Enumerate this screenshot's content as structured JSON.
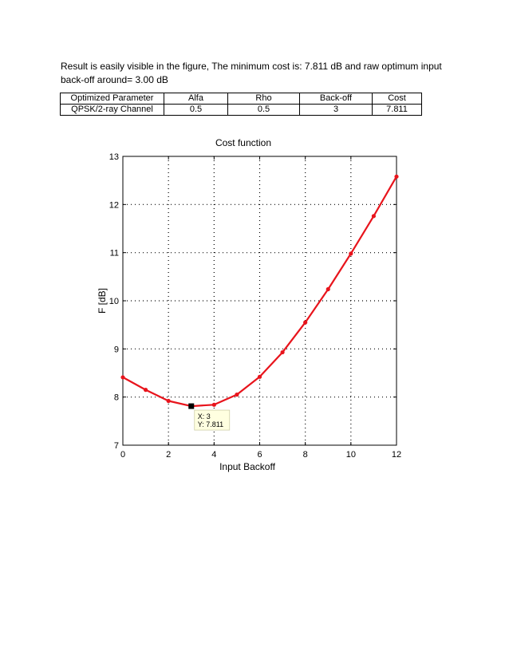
{
  "paragraph": {
    "line1": "Result is easily visible in the figure, The minimum cost is: 7.811 dB and raw optimum input",
    "line2": "back-off around= 3.00 dB"
  },
  "table": {
    "headers": [
      "Optimized Parameter",
      "Alfa",
      "Rho",
      "Back-off",
      "Cost"
    ],
    "rows": [
      [
        "QPSK/2-ray Channel",
        "0.5",
        "0.5",
        "3",
        "7.811"
      ]
    ]
  },
  "chart_data": {
    "type": "line",
    "title": "Cost function",
    "xlabel": "Input Backoff",
    "ylabel": "F [dB]",
    "xlim": [
      0,
      12
    ],
    "ylim": [
      7,
      13
    ],
    "xticks": [
      0,
      2,
      4,
      6,
      8,
      10,
      12
    ],
    "yticks": [
      7,
      8,
      9,
      10,
      11,
      12,
      13
    ],
    "grid": true,
    "series": [
      {
        "color": "#e8141c",
        "x": [
          0,
          1,
          2,
          3,
          4,
          5,
          6,
          7,
          8,
          9,
          10,
          11,
          12
        ],
        "y": [
          8.41,
          8.15,
          7.92,
          7.811,
          7.84,
          8.05,
          8.42,
          8.93,
          9.55,
          10.24,
          10.98,
          11.76,
          12.58
        ]
      }
    ],
    "datatip": {
      "x": 3,
      "y": 7.811,
      "line1": "X: 3",
      "line2": "Y: 7.811"
    }
  }
}
